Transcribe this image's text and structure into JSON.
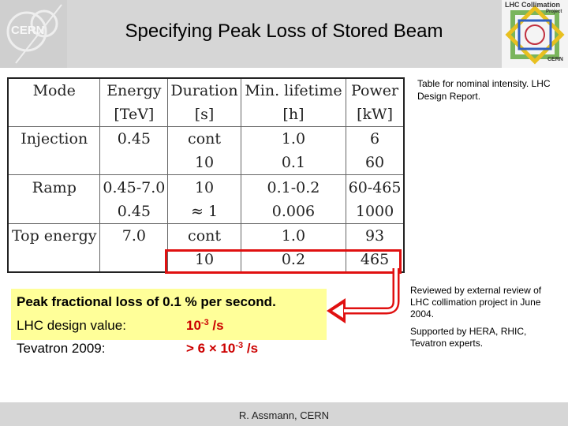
{
  "header": {
    "title": "Specifying Peak Loss of Stored Beam",
    "collimation_logo_text": "LHC Collimation",
    "collimation_logo_sub": "Project",
    "collimation_logo_org": "CERN",
    "cern_logo_text": "CERN"
  },
  "table": {
    "headers": [
      [
        "Mode",
        ""
      ],
      [
        "Energy",
        "[TeV]"
      ],
      [
        "Duration",
        "[s]"
      ],
      [
        "Min. lifetime",
        "[h]"
      ],
      [
        "Power",
        "[kW]"
      ]
    ],
    "rows": [
      [
        "Injection",
        "0.45",
        "cont",
        "1.0",
        "6"
      ],
      [
        "",
        "",
        "10",
        "0.1",
        "60"
      ],
      [
        "Ramp",
        "0.45-7.0",
        "10",
        "0.1-0.2",
        "60-465"
      ],
      [
        "",
        "0.45",
        "≈ 1",
        "0.006",
        "1000"
      ],
      [
        "Top energy",
        "7.0",
        "cont",
        "1.0",
        "93"
      ],
      [
        "",
        "",
        "10",
        "0.2",
        "465"
      ]
    ]
  },
  "notes": {
    "table_note": "Table for nominal intensity. LHC Design Report.",
    "review_note": "Reviewed by external review of LHC collimation project in June 2004.",
    "support_note": "Supported by HERA, RHIC, Tevatron experts."
  },
  "summary": {
    "headline": "Peak fractional loss of 0.1 % per second.",
    "lhc_label": "LHC design value:",
    "lhc_value_base": "10",
    "lhc_value_exp": "-3",
    "lhc_value_unit": " /s",
    "tevatron_label": "Tevatron 2009:",
    "tevatron_value_base": "> 6 × 10",
    "tevatron_value_exp": "-3",
    "tevatron_value_unit": " /s"
  },
  "footer": {
    "author": "R. Assmann, CERN"
  },
  "colors": {
    "highlight": "#e01010",
    "box": "#ffff99",
    "value_text": "#cc0000"
  }
}
